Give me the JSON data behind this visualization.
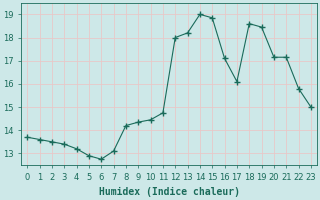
{
  "x": [
    0,
    1,
    2,
    3,
    4,
    5,
    6,
    7,
    8,
    9,
    10,
    11,
    12,
    13,
    14,
    15,
    16,
    17,
    18,
    19,
    20,
    21,
    22,
    23
  ],
  "y": [
    13.7,
    13.6,
    13.5,
    13.4,
    13.2,
    12.9,
    12.75,
    13.1,
    14.2,
    14.35,
    14.45,
    14.75,
    18.0,
    18.2,
    19.0,
    18.85,
    17.1,
    16.1,
    18.6,
    18.45,
    17.15,
    17.15,
    15.8,
    15.0
  ],
  "line_color": "#1a6b5a",
  "marker": "+",
  "marker_size": 4,
  "bg_color": "#cde8e8",
  "grid_color_major": "#e8c8c8",
  "grid_color_minor": "#e8c8c8",
  "xlabel": "Humidex (Indice chaleur)",
  "ylim": [
    12.5,
    19.5
  ],
  "xlim": [
    -0.5,
    23.5
  ],
  "yticks": [
    13,
    14,
    15,
    16,
    17,
    18,
    19
  ],
  "xticks": [
    0,
    1,
    2,
    3,
    4,
    5,
    6,
    7,
    8,
    9,
    10,
    11,
    12,
    13,
    14,
    15,
    16,
    17,
    18,
    19,
    20,
    21,
    22,
    23
  ],
  "xtick_labels": [
    "0",
    "1",
    "2",
    "3",
    "4",
    "5",
    "6",
    "7",
    "8",
    "9",
    "10",
    "11",
    "12",
    "13",
    "14",
    "15",
    "16",
    "17",
    "18",
    "19",
    "20",
    "21",
    "22",
    "23"
  ],
  "font_size": 6,
  "xlabel_fontsize": 7,
  "tick_color": "#1a6b5a",
  "label_color": "#1a6b5a"
}
